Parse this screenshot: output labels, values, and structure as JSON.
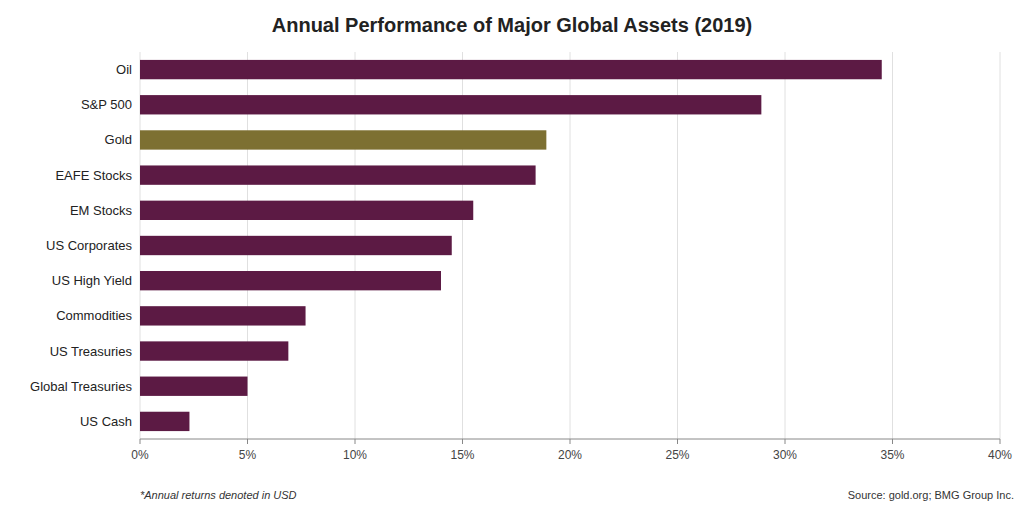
{
  "chart_data": {
    "type": "bar",
    "orientation": "horizontal",
    "title": "Annual Performance of Major Global Assets (2019)",
    "categories": [
      "Oil",
      "S&P 500",
      "Gold",
      "EAFE Stocks",
      "EM Stocks",
      "US Corporates",
      "US High Yield",
      "Commodities",
      "US Treasuries",
      "Global Treasuries",
      "US Cash"
    ],
    "values": [
      34.5,
      28.9,
      18.9,
      18.4,
      15.5,
      14.5,
      14.0,
      7.7,
      6.9,
      5.0,
      2.3
    ],
    "colors": [
      "#5c1a44",
      "#5c1a44",
      "#7d7032",
      "#5c1a44",
      "#5c1a44",
      "#5c1a44",
      "#5c1a44",
      "#5c1a44",
      "#5c1a44",
      "#5c1a44",
      "#5c1a44"
    ],
    "xlim": [
      0,
      40
    ],
    "xticks": [
      {
        "value": 0,
        "label": "0%"
      },
      {
        "value": 5,
        "label": "5%"
      },
      {
        "value": 10,
        "label": "10%"
      },
      {
        "value": 15,
        "label": "15%"
      },
      {
        "value": 20,
        "label": "20%"
      },
      {
        "value": 25,
        "label": "25%"
      },
      {
        "value": 30,
        "label": "30%"
      },
      {
        "value": 35,
        "label": "35%"
      },
      {
        "value": 40,
        "label": "40%"
      }
    ],
    "grid": true,
    "annotations": [
      "*Annual returns denoted in USD",
      "Source: gold.org; BMG Group Inc."
    ]
  }
}
